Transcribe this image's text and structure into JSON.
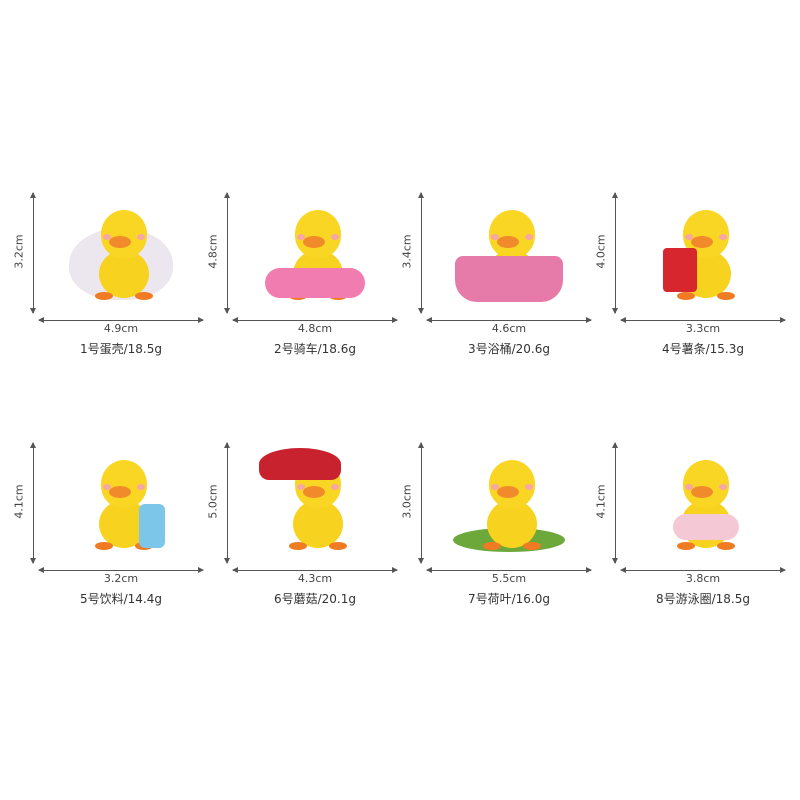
{
  "products": [
    {
      "name": "1号蛋壳/18.5g",
      "height": "3.2cm",
      "width": "4.9cm",
      "accessory": "eggshell",
      "accessory_color": "#ece6ee"
    },
    {
      "name": "2号骑车/18.6g",
      "height": "4.8cm",
      "width": "4.8cm",
      "accessory": "scooter",
      "accessory_color": "#f07cb0"
    },
    {
      "name": "3号浴桶/20.6g",
      "height": "3.4cm",
      "width": "4.6cm",
      "accessory": "bathtub",
      "accessory_color": "#e67aa8"
    },
    {
      "name": "4号薯条/15.3g",
      "height": "4.0cm",
      "width": "3.3cm",
      "accessory": "fries",
      "accessory_color": "#d8262e"
    },
    {
      "name": "5号饮料/14.4g",
      "height": "4.1cm",
      "width": "3.2cm",
      "accessory": "bottle",
      "accessory_color": "#7cc6ea"
    },
    {
      "name": "6号蘑菇/20.1g",
      "height": "5.0cm",
      "width": "4.3cm",
      "accessory": "mushroom",
      "accessory_color": "#c8222e"
    },
    {
      "name": "7号荷叶/16.0g",
      "height": "3.0cm",
      "width": "5.5cm",
      "accessory": "lotus-leaf",
      "accessory_color": "#6ca83a"
    },
    {
      "name": "8号游泳圈/18.5g",
      "height": "4.1cm",
      "width": "3.8cm",
      "accessory": "swim-ring",
      "accessory_color": "#f4c8d4"
    }
  ],
  "colors": {
    "duck": "#f7d21e",
    "beak": "#f08a2a",
    "text": "#333333"
  }
}
